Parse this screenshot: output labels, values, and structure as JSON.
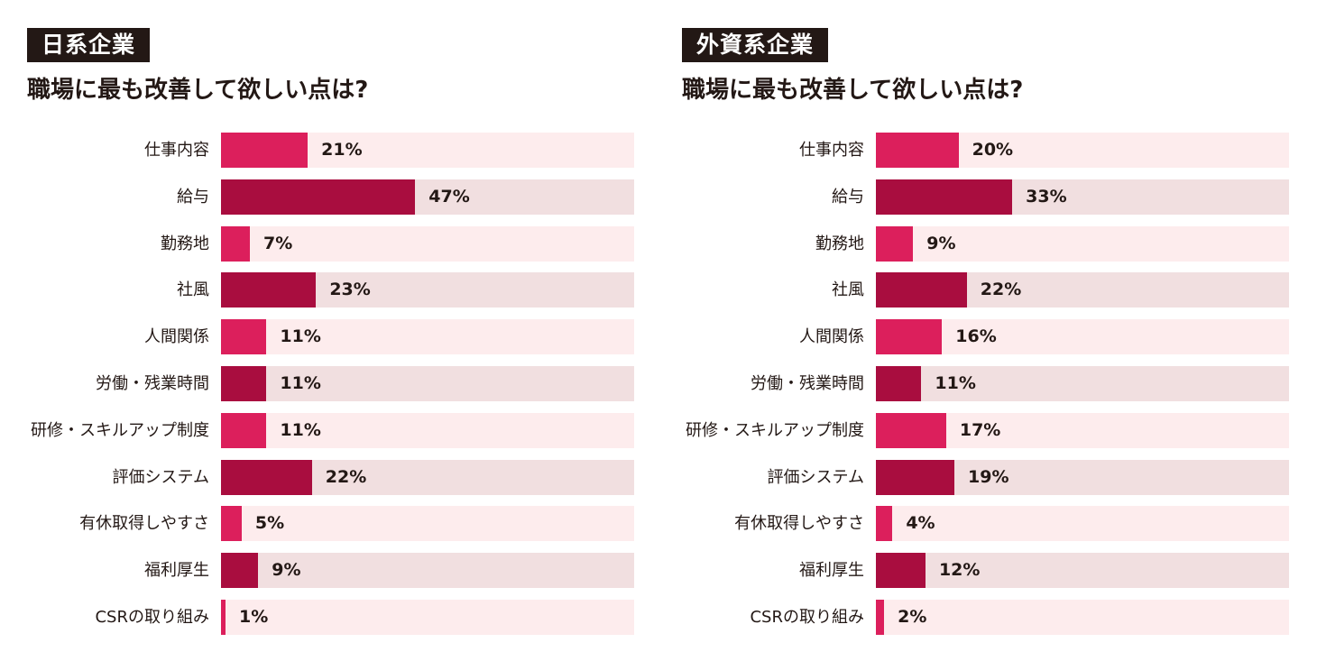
{
  "chart_data": [
    {
      "type": "bar",
      "orientation": "horizontal",
      "badge": "日系企業",
      "title": "職場に最も改善して欲しい点は?",
      "categories": [
        "仕事内容",
        "給与",
        "勤務地",
        "社風",
        "人間関係",
        "労働・残業時間",
        "研修・スキルアップ制度",
        "評価システム",
        "有休取得しやすさ",
        "福利厚生",
        "CSRの取り組み"
      ],
      "values": [
        21,
        47,
        7,
        23,
        11,
        11,
        11,
        22,
        5,
        9,
        1
      ],
      "value_labels": [
        "21%",
        "47%",
        "7%",
        "23%",
        "11%",
        "11%",
        "11%",
        "22%",
        "5%",
        "9%",
        "1%"
      ],
      "unit": "%",
      "xlim": [
        0,
        100
      ],
      "colors": {
        "bar_light": "#dc1f5c",
        "bar_dark": "#a90d3f",
        "track_light": "#fdeced",
        "track_dark": "#f1dfe0"
      }
    },
    {
      "type": "bar",
      "orientation": "horizontal",
      "badge": "外資系企業",
      "title": "職場に最も改善して欲しい点は?",
      "categories": [
        "仕事内容",
        "給与",
        "勤務地",
        "社風",
        "人間関係",
        "労働・残業時間",
        "研修・スキルアップ制度",
        "評価システム",
        "有休取得しやすさ",
        "福利厚生",
        "CSRの取り組み"
      ],
      "values": [
        20,
        33,
        9,
        22,
        16,
        11,
        17,
        19,
        4,
        12,
        2
      ],
      "value_labels": [
        "20%",
        "33%",
        "9%",
        "22%",
        "16%",
        "11%",
        "17%",
        "19%",
        "4%",
        "12%",
        "2%"
      ],
      "unit": "%",
      "xlim": [
        0,
        100
      ],
      "colors": {
        "bar_light": "#dc1f5c",
        "bar_dark": "#a90d3f",
        "track_light": "#fdeced",
        "track_dark": "#f1dfe0"
      }
    }
  ]
}
